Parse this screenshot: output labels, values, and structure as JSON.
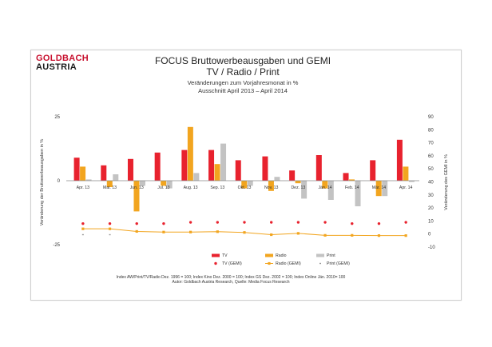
{
  "logo": {
    "line1": "GOLDBACH",
    "line2": "AUSTRIA"
  },
  "header": {
    "title": "FOCUS Bruttowerbeausgaben und GEMI",
    "subtitle": "TV / Radio / Print",
    "line3": "Veränderungen zum Vorjahresmonat in %",
    "line4": "Ausschnitt  April 2013 –  April 2014"
  },
  "footer": {
    "line1": "Index AW/Print/TV/Radio Dez. 1996 = 100; Index Kino Dez. 2000 = 100; Index GS Dez. 2002 = 100; Index Online  Jän. 2010= 100",
    "line2": "Autor: Goldbach Austria Research, Quelle: Media Focus Research"
  },
  "colors": {
    "tv": "#e8222e",
    "radio": "#f2a51f",
    "print": "#c3c3c3",
    "axis": "#888888"
  },
  "chart_data": {
    "type": "bar",
    "categories": [
      "Apr. 13",
      "Mai. 13",
      "Jun. 13",
      "Jul. 13",
      "Aug. 13",
      "Sep. 13",
      "Okt. 13",
      "Nov. 13",
      "Dez. 13",
      "Jän. 14",
      "Feb. 14",
      "Mär. 14",
      "Apr. 14"
    ],
    "y_left": {
      "label": "Veränderung der Bruttowerbeausgaben in %",
      "ticks": [
        "25",
        "0",
        "-25"
      ],
      "range": [
        -25,
        25
      ]
    },
    "y_right": {
      "label": "Veränderung des GEMI in %",
      "ticks": [
        "90",
        "80",
        "70",
        "60",
        "50",
        "40",
        "30",
        "20",
        "10",
        "0",
        "-10"
      ],
      "range": [
        -10,
        90
      ]
    },
    "series": [
      {
        "name": "TV",
        "values": [
          9,
          6,
          8.5,
          11,
          12,
          12,
          8,
          9.5,
          4,
          10,
          3,
          8,
          16
        ]
      },
      {
        "name": "Radio",
        "values": [
          5.5,
          -2.5,
          -12,
          -2,
          21,
          6.5,
          -3,
          -4,
          -1,
          -3,
          0.5,
          -6,
          5.5
        ]
      },
      {
        "name": "Print",
        "values": [
          0.5,
          2.5,
          -2,
          -3,
          3,
          14.5,
          -2,
          1.5,
          -7,
          -7.5,
          -10,
          -6,
          -0.5
        ]
      }
    ],
    "gemi_series": [
      {
        "name": "TV (GEMI)",
        "values": [
          8,
          8,
          8,
          8,
          9,
          9,
          9,
          9,
          9,
          9,
          8,
          8,
          9
        ]
      },
      {
        "name": "Radio (GEMI)",
        "values": [
          4,
          4,
          2,
          1.5,
          1.5,
          1.8,
          1.2,
          -0.5,
          0.5,
          -1,
          -1,
          -1.2,
          -1.2
        ]
      },
      {
        "name": "Print (GEMI)",
        "values": [
          -0.5,
          -0.5,
          null,
          null,
          null,
          null,
          null,
          null,
          null,
          null,
          null,
          null,
          null
        ]
      }
    ],
    "legend": [
      "TV",
      "Radio",
      "Print",
      "TV (GEMI)",
      "Radio (GEMI)",
      "Print (GEMI)"
    ]
  }
}
